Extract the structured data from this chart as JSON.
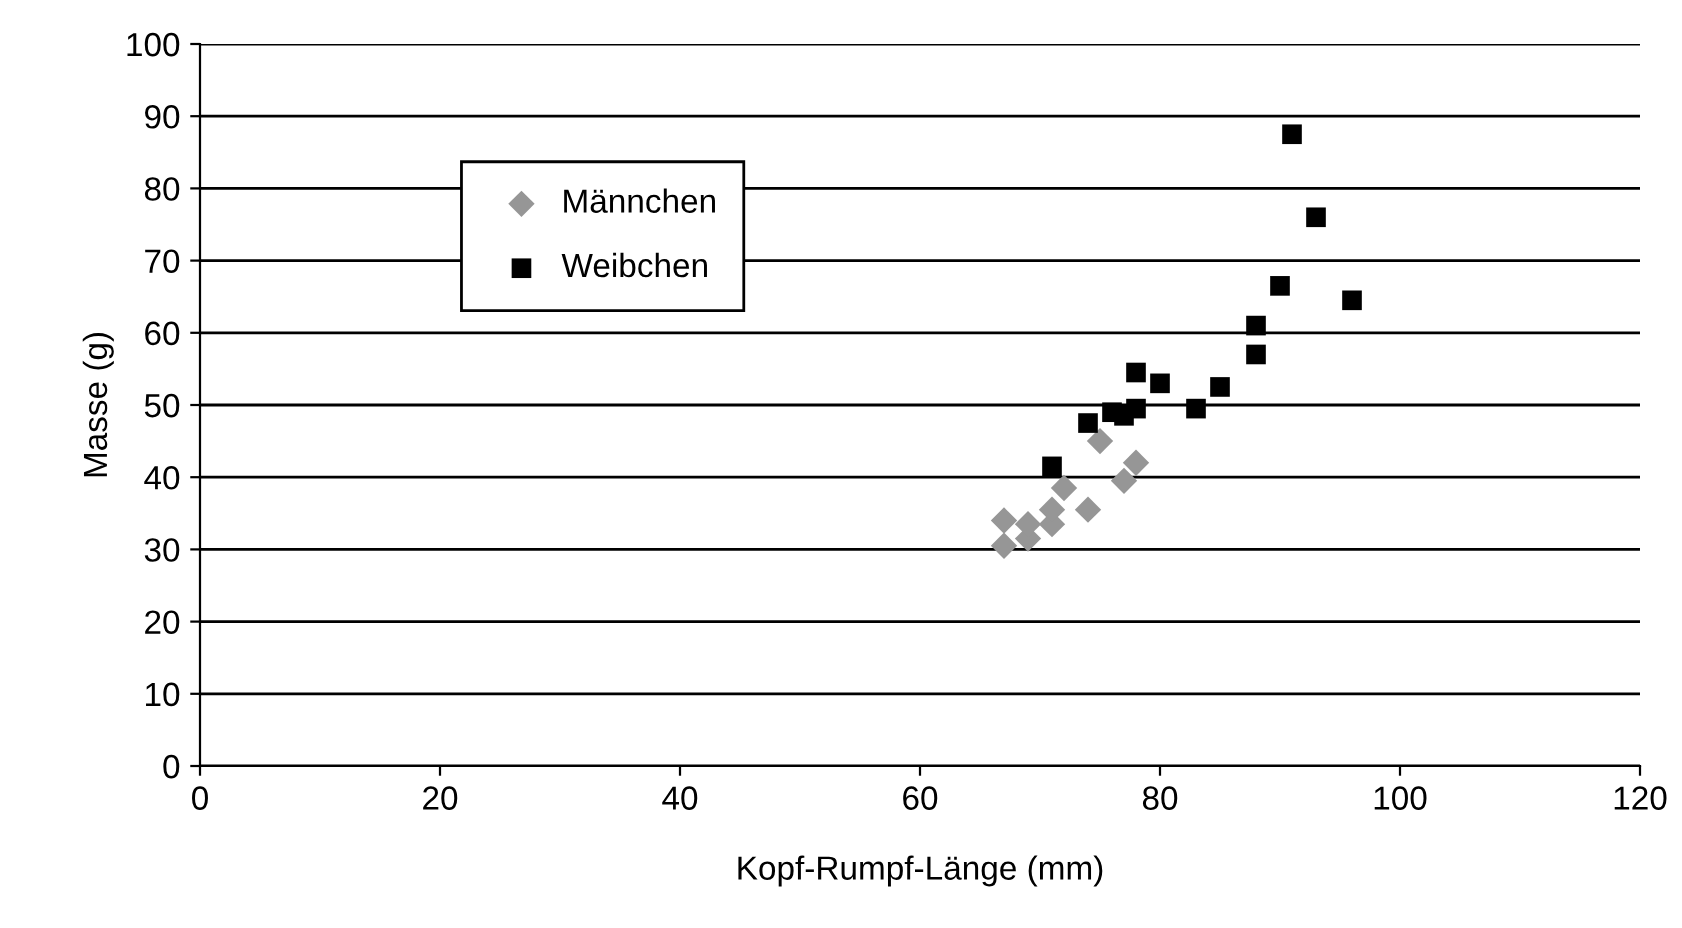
{
  "chart_data": {
    "type": "scatter",
    "xlabel": "Kopf-Rumpf-Länge (mm)",
    "ylabel": "Masse (g)",
    "xlim": [
      0,
      120
    ],
    "xticks": [
      0,
      20,
      40,
      60,
      80,
      100,
      120
    ],
    "ylim": [
      0,
      100
    ],
    "yticks": [
      0,
      10,
      20,
      30,
      40,
      50,
      60,
      70,
      80,
      90,
      100
    ],
    "grid": "y",
    "legend": "top left",
    "series": [
      {
        "name": "Männchen",
        "color": "#969696",
        "marker": "diamond",
        "x": [
          67,
          67,
          69,
          69,
          71,
          71,
          72,
          74,
          75,
          77,
          78
        ],
        "values": [
          30.5,
          34,
          31.5,
          33.5,
          33.5,
          35.5,
          38.5,
          35.5,
          45,
          39.5,
          42
        ]
      },
      {
        "name": "Weibchen",
        "color": "#000000",
        "marker": "square",
        "x": [
          71,
          74,
          76,
          77,
          78,
          78,
          80,
          83,
          85,
          88,
          88,
          90,
          91,
          93,
          96
        ],
        "values": [
          41.5,
          47.5,
          49,
          48.5,
          54.5,
          49.5,
          53,
          49.5,
          52.5,
          61,
          57,
          66.5,
          87.5,
          76,
          64.5
        ]
      }
    ]
  }
}
